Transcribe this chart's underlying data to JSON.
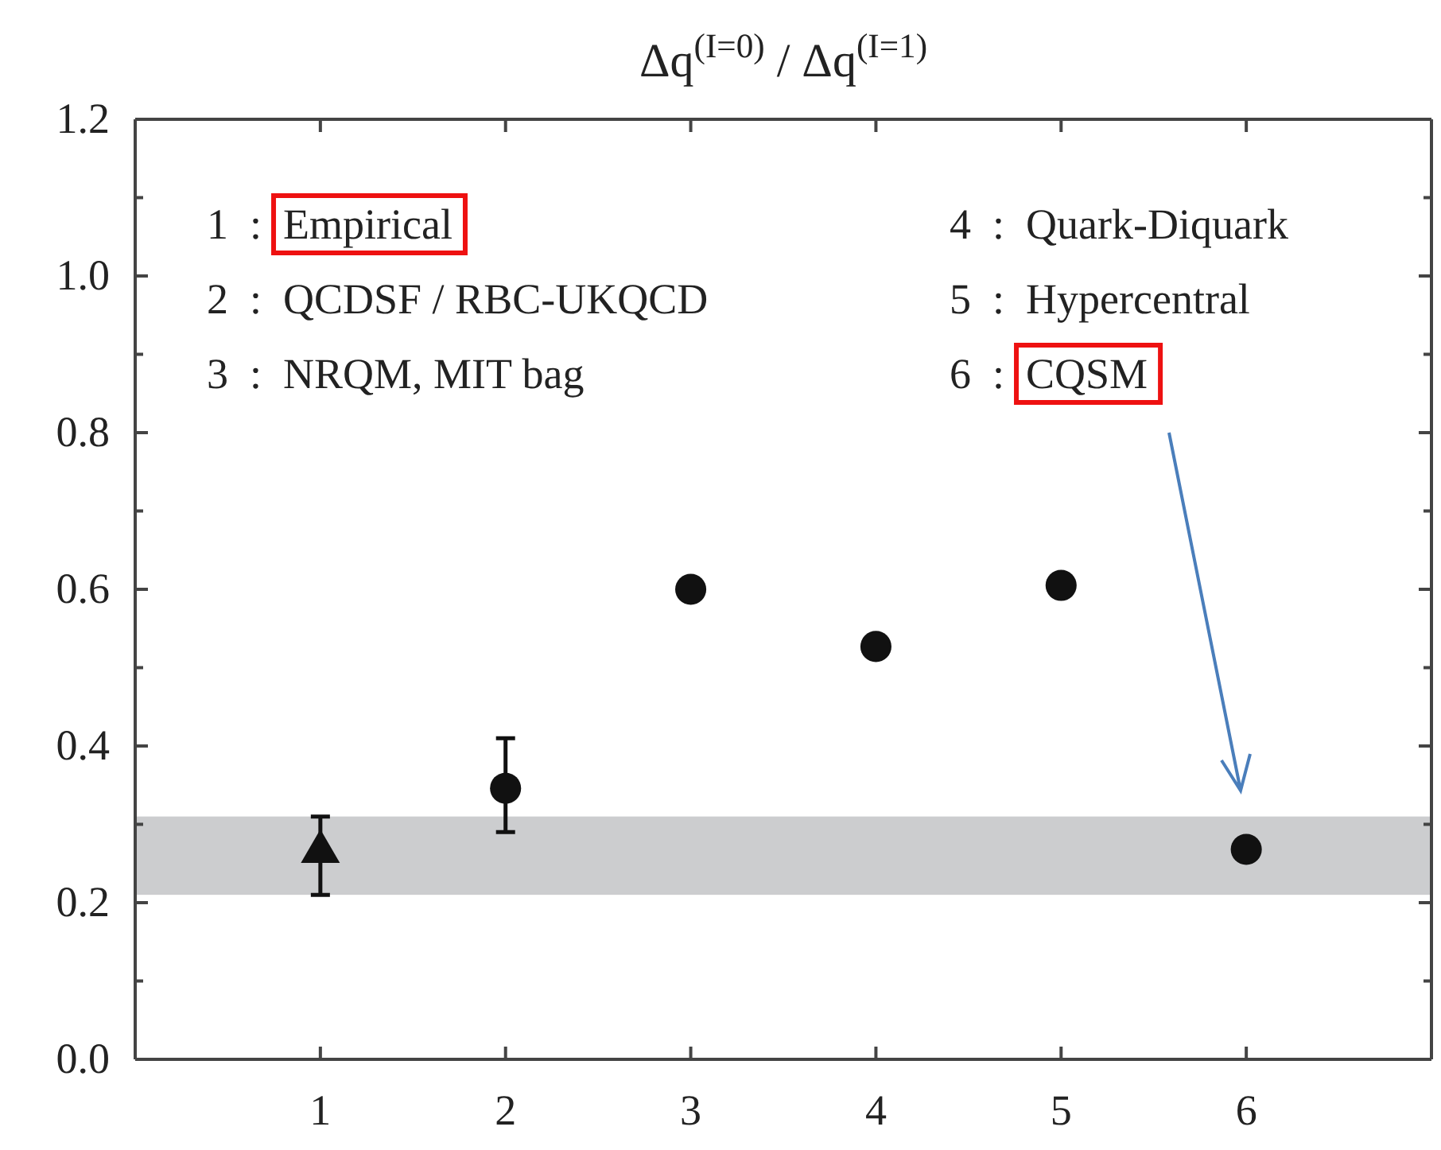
{
  "chart_data": {
    "type": "scatter",
    "title": "Δq$^{(I=0)}$ / Δq$^{(I=1)}$",
    "xlim": [
      0,
      7
    ],
    "xticks": [
      1,
      2,
      3,
      4,
      5,
      6
    ],
    "ylim": [
      0,
      1.2
    ],
    "yticks": [
      {
        "value": 0,
        "label": "0.0"
      },
      {
        "value": 0.1,
        "label": null
      },
      0.2,
      {
        "value": 0.3,
        "label": null
      },
      0.4,
      {
        "value": 0.5,
        "label": null
      },
      0.6,
      {
        "value": 0.7,
        "label": null
      },
      0.8,
      {
        "value": 0.9,
        "label": null
      },
      {
        "value": 1,
        "label": "1.0"
      },
      {
        "value": 1.1,
        "label": null
      },
      1.2
    ],
    "grid": false,
    "bands": [
      {
        "axis": "y",
        "from": 0.21,
        "to": 0.31,
        "color": "#cccdcf"
      }
    ],
    "series": [
      {
        "marker": "triangle",
        "color": "#111111",
        "x": [
          1
        ],
        "values": [
          0.265
        ],
        "errors": [
          [
            0.21,
            0.31
          ]
        ]
      },
      {
        "marker": "circle",
        "color": "#111111",
        "x": [
          2,
          3,
          4,
          5,
          6
        ],
        "values": [
          0.346,
          0.6,
          0.527,
          0.605,
          0.268
        ],
        "errors": [
          [
            0.29,
            0.41
          ],
          null,
          null,
          null,
          null
        ]
      }
    ],
    "annotations": [
      "1  :  Empirical",
      "2  :  QCDSF / RBC-UKQCD",
      "3  :  NRQM, MIT bag",
      "4  :  Quark-Diquark",
      "5  :  Hypercentral",
      "6  :  CQSM"
    ]
  }
}
